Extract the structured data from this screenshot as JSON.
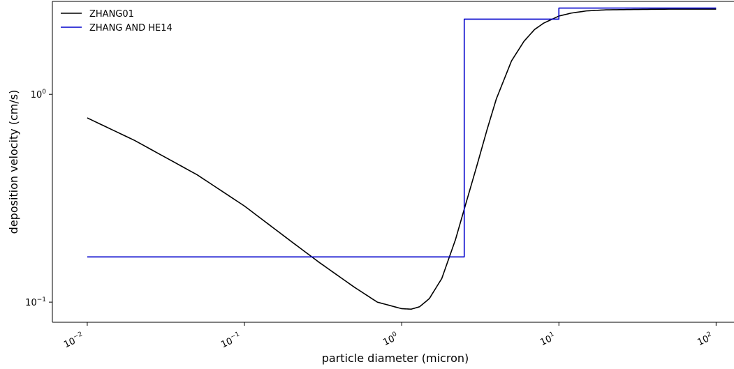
{
  "chart_data": {
    "type": "line",
    "xscale": "log",
    "yscale": "log",
    "xlim": [
      0.006,
      130
    ],
    "ylim": [
      0.08,
      2.8
    ],
    "xlabel": "particle diameter (micron)",
    "ylabel": "deposition velocity (cm/s)",
    "x_ticks": [
      {
        "value": 0.01,
        "base": "10",
        "exp": "−2"
      },
      {
        "value": 0.1,
        "base": "10",
        "exp": "−1"
      },
      {
        "value": 1,
        "base": "10",
        "exp": "0"
      },
      {
        "value": 10,
        "base": "10",
        "exp": "1"
      },
      {
        "value": 100,
        "base": "10",
        "exp": "2"
      }
    ],
    "y_ticks": [
      {
        "value": 0.1,
        "base": "10",
        "exp": "−1"
      },
      {
        "value": 1,
        "base": "10",
        "exp": "0"
      }
    ],
    "legend_position": "top-left",
    "series": [
      {
        "name": "ZHANG01",
        "color": "#000000",
        "step": false,
        "x": [
          0.01,
          0.02,
          0.05,
          0.1,
          0.2,
          0.3,
          0.5,
          0.7,
          1.0,
          1.15,
          1.3,
          1.5,
          1.8,
          2.2,
          2.5,
          3.0,
          3.5,
          4.0,
          5.0,
          6.0,
          7.0,
          8.0,
          10,
          12,
          15,
          20,
          30,
          50,
          100
        ],
        "y": [
          0.77,
          0.6,
          0.41,
          0.29,
          0.195,
          0.155,
          0.118,
          0.1,
          0.093,
          0.0925,
          0.095,
          0.104,
          0.13,
          0.2,
          0.28,
          0.45,
          0.68,
          0.95,
          1.45,
          1.8,
          2.05,
          2.2,
          2.38,
          2.46,
          2.52,
          2.55,
          2.56,
          2.57,
          2.57
        ]
      },
      {
        "name": "ZHANG AND HE14",
        "color": "#0000cc",
        "step": true,
        "x": [
          0.01,
          2.5,
          2.5,
          10,
          10,
          100
        ],
        "y": [
          0.165,
          0.165,
          2.3,
          2.3,
          2.6,
          2.6
        ]
      }
    ]
  }
}
